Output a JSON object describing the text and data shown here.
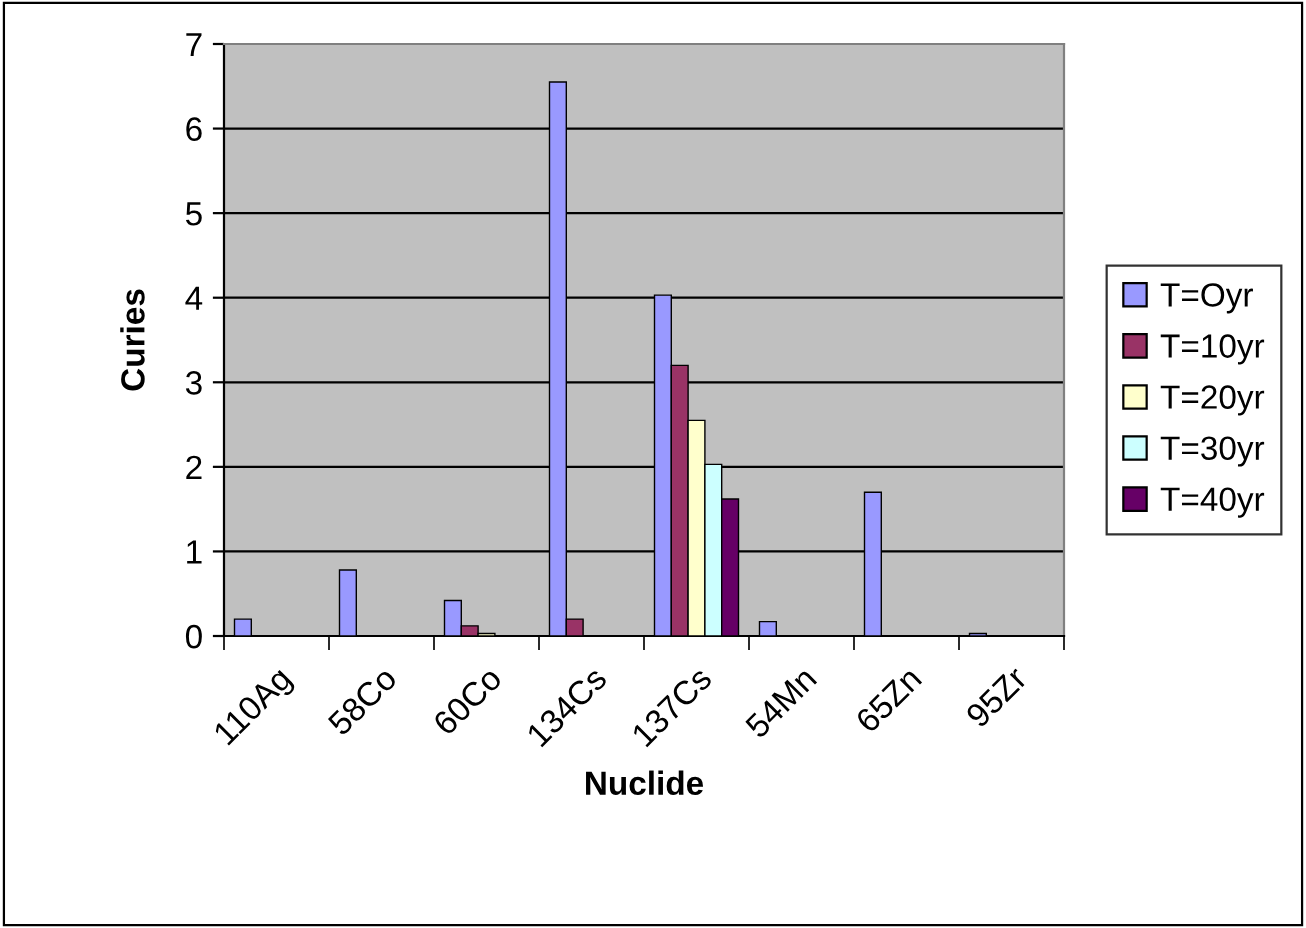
{
  "chart_data": {
    "type": "bar",
    "xlabel": "Nuclide",
    "ylabel": "Curies",
    "categories": [
      "110Ag",
      "58Co",
      "60Co",
      "134Cs",
      "137Cs",
      "54Mn",
      "65Zn",
      "95Zr"
    ],
    "series": [
      {
        "name": "T=Oyr",
        "color": "#9999ff",
        "values": [
          0.2,
          0.78,
          0.42,
          6.55,
          4.03,
          0.17,
          1.7,
          0.03
        ]
      },
      {
        "name": "T=10yr",
        "color": "#993366",
        "values": [
          null,
          null,
          0.12,
          0.2,
          3.2,
          null,
          null,
          null
        ]
      },
      {
        "name": "T=20yr",
        "color": "#ffffcc",
        "values": [
          null,
          null,
          0.03,
          null,
          2.55,
          null,
          null,
          null
        ]
      },
      {
        "name": "T=30yr",
        "color": "#ccffff",
        "values": [
          null,
          null,
          null,
          null,
          2.03,
          null,
          null,
          null
        ]
      },
      {
        "name": "T=40yr",
        "color": "#660066",
        "values": [
          null,
          null,
          null,
          null,
          1.62,
          null,
          null,
          null
        ]
      }
    ],
    "ylim": [
      0,
      7
    ],
    "yticks": [
      0,
      1,
      2,
      3,
      4,
      5,
      6,
      7
    ],
    "grid": "y",
    "legend": "right"
  }
}
